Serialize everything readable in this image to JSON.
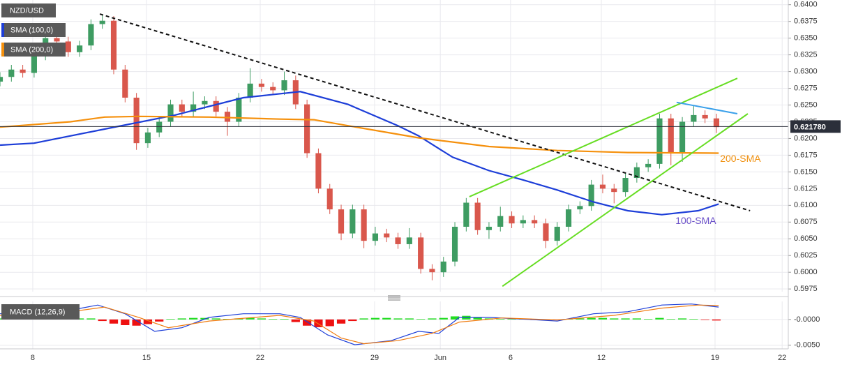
{
  "chart_data": [
    {
      "type": "candlestick",
      "title": "NZD/USD",
      "x": [
        0,
        0.5,
        1,
        1.5,
        2,
        2.5,
        3,
        3.5,
        4,
        4.5,
        5,
        5.5,
        6,
        6.5,
        7,
        7.5,
        8,
        8.5,
        9,
        9.5,
        10,
        10.5,
        11,
        11.5,
        12,
        12.5,
        13,
        13.5,
        14,
        14.5,
        15,
        15.5,
        16,
        16.5,
        17,
        17.5,
        18,
        18.5,
        19,
        19.5,
        20,
        20.5,
        21,
        21.5,
        22,
        22.5,
        23,
        23.5,
        24,
        24.5,
        25,
        25.5,
        26,
        26.5,
        27,
        27.5,
        28,
        28.5,
        29,
        29.5,
        30,
        30.5,
        31,
        31.5
      ],
      "open": [
        0.6285,
        0.6292,
        0.6303,
        0.6298,
        0.6324,
        0.635,
        0.6345,
        0.6329,
        0.6339,
        0.6371,
        0.6376,
        0.6303,
        0.6261,
        0.6193,
        0.6209,
        0.6225,
        0.6251,
        0.624,
        0.6251,
        0.6256,
        0.624,
        0.6225,
        0.6261,
        0.6282,
        0.6277,
        0.6272,
        0.6287,
        0.6251,
        0.6178,
        0.6125,
        0.6094,
        0.6058,
        0.6094,
        0.6047,
        0.6058,
        0.6052,
        0.6042,
        0.6052,
        0.6005,
        0.6,
        0.6016,
        0.6068,
        0.6104,
        0.6063,
        0.6068,
        0.6084,
        0.6073,
        0.6078,
        0.6073,
        0.6047,
        0.6068,
        0.6094,
        0.6099,
        0.6131,
        0.6125,
        0.612,
        0.6141,
        0.6157,
        0.6162,
        0.623,
        0.6178,
        0.6225,
        0.6235,
        0.623
      ],
      "high": [
        0.6299,
        0.631,
        0.631,
        0.6331,
        0.6357,
        0.6357,
        0.6352,
        0.6346,
        0.6378,
        0.6385,
        0.6383,
        0.631,
        0.6268,
        0.6216,
        0.6232,
        0.6258,
        0.6258,
        0.627,
        0.6263,
        0.6263,
        0.6247,
        0.6268,
        0.6305,
        0.6289,
        0.6284,
        0.63,
        0.6294,
        0.6258,
        0.6185,
        0.6132,
        0.6101,
        0.6101,
        0.6101,
        0.6068,
        0.6065,
        0.6059,
        0.6066,
        0.6059,
        0.6012,
        0.6023,
        0.6075,
        0.6111,
        0.6111,
        0.6075,
        0.6098,
        0.6091,
        0.6085,
        0.6085,
        0.608,
        0.6075,
        0.6101,
        0.6106,
        0.6138,
        0.6146,
        0.6132,
        0.6148,
        0.6164,
        0.6169,
        0.6237,
        0.6237,
        0.6232,
        0.625,
        0.6242,
        0.6237
      ],
      "low": [
        0.6278,
        0.6285,
        0.6291,
        0.6291,
        0.6317,
        0.6338,
        0.6322,
        0.6322,
        0.6332,
        0.6364,
        0.6296,
        0.6254,
        0.6183,
        0.6186,
        0.6202,
        0.6218,
        0.6233,
        0.6233,
        0.6244,
        0.6233,
        0.6204,
        0.6218,
        0.6254,
        0.627,
        0.6265,
        0.6265,
        0.6244,
        0.6171,
        0.6118,
        0.6087,
        0.6048,
        0.6051,
        0.6036,
        0.604,
        0.6045,
        0.6035,
        0.6035,
        0.5998,
        0.5988,
        0.5993,
        0.6009,
        0.6061,
        0.6056,
        0.605,
        0.6061,
        0.6066,
        0.6066,
        0.6066,
        0.6036,
        0.604,
        0.6061,
        0.6087,
        0.6092,
        0.6118,
        0.6103,
        0.6113,
        0.6134,
        0.615,
        0.6155,
        0.616,
        0.6165,
        0.6218,
        0.6223,
        0.6208
      ],
      "close": [
        0.6292,
        0.6303,
        0.6298,
        0.6324,
        0.635,
        0.6345,
        0.6329,
        0.6339,
        0.6371,
        0.6376,
        0.6303,
        0.6261,
        0.6193,
        0.6209,
        0.6225,
        0.6251,
        0.624,
        0.6251,
        0.6256,
        0.624,
        0.6225,
        0.6261,
        0.6282,
        0.6277,
        0.6272,
        0.6287,
        0.6251,
        0.6178,
        0.6125,
        0.6094,
        0.6058,
        0.6094,
        0.6047,
        0.6058,
        0.6052,
        0.6042,
        0.6052,
        0.6005,
        0.6,
        0.6016,
        0.6068,
        0.6104,
        0.6063,
        0.6068,
        0.6084,
        0.6073,
        0.6078,
        0.6073,
        0.6047,
        0.6068,
        0.6094,
        0.6099,
        0.6131,
        0.6125,
        0.612,
        0.6141,
        0.6157,
        0.6162,
        0.623,
        0.6178,
        0.6225,
        0.6235,
        0.623,
        0.6217
      ],
      "up_color": "#3e9c62",
      "down_color": "#d9574c",
      "xlim": [
        0,
        34.66
      ],
      "ylim": [
        0.5971,
        0.6407
      ],
      "xticks": [
        {
          "value": 1.44,
          "label": "8"
        },
        {
          "value": 6.44,
          "label": "15"
        },
        {
          "value": 11.44,
          "label": "22"
        },
        {
          "value": 16.47,
          "label": "29"
        },
        {
          "value": 19.36,
          "label": "Jun"
        },
        {
          "value": 22.45,
          "label": "6"
        },
        {
          "value": 26.44,
          "label": "12"
        },
        {
          "value": 31.44,
          "label": "19"
        },
        {
          "value": 34.39,
          "label": "22"
        }
      ],
      "yticks": [
        {
          "value": 0.64,
          "label": "0.6400"
        },
        {
          "value": 0.6375,
          "label": "0.6375"
        },
        {
          "value": 0.635,
          "label": "0.6350"
        },
        {
          "value": 0.6325,
          "label": "0.6325"
        },
        {
          "value": 0.63,
          "label": "0.6300"
        },
        {
          "value": 0.6275,
          "label": "0.6275"
        },
        {
          "value": 0.625,
          "label": "0.6250"
        },
        {
          "value": 0.6225,
          "label": "0.6225"
        },
        {
          "value": 0.62,
          "label": "0.6200"
        },
        {
          "value": 0.6175,
          "label": "0.6175"
        },
        {
          "value": 0.615,
          "label": "0.6150"
        },
        {
          "value": 0.6125,
          "label": "0.6125"
        },
        {
          "value": 0.61,
          "label": "0.6100"
        },
        {
          "value": 0.6075,
          "label": "0.6075"
        },
        {
          "value": 0.605,
          "label": "0.6050"
        },
        {
          "value": 0.6025,
          "label": "0.6025"
        },
        {
          "value": 0.6,
          "label": "0.6000"
        },
        {
          "value": 0.5975,
          "label": "0.5975"
        }
      ],
      "grid": true,
      "series": [
        {
          "name": "SMA (100,0)",
          "label": "100-SMA",
          "label_color": "#6a4fc9",
          "color": "#1d3ed8",
          "x": [
            0,
            1.5,
            4.6,
            7.7,
            10.7,
            13.2,
            15.3,
            17.5,
            18.4,
            19.9,
            21.5,
            23,
            24.5,
            26.1,
            27.6,
            29.1,
            30.7,
            31.6
          ],
          "values": [
            0.619,
            0.6193,
            0.6214,
            0.6235,
            0.6261,
            0.627,
            0.6251,
            0.6219,
            0.6204,
            0.6172,
            0.6152,
            0.6138,
            0.6123,
            0.6105,
            0.6092,
            0.6086,
            0.6092,
            0.6102
          ]
        },
        {
          "name": "SMA (200,0)",
          "label": "200-SMA",
          "label_color": "#f0900e",
          "color": "#f5900c",
          "x": [
            0,
            3.1,
            4.6,
            6.1,
            9.2,
            12.3,
            13.8,
            15.3,
            18.4,
            21.5,
            24.5,
            27.6,
            31.6
          ],
          "values": [
            0.6217,
            0.6225,
            0.6232,
            0.6233,
            0.6232,
            0.6229,
            0.6228,
            0.6219,
            0.6201,
            0.6188,
            0.6182,
            0.6179,
            0.6178
          ]
        }
      ],
      "trendlines": [
        {
          "color": "#111111",
          "dashed": true,
          "x": [
            4.39,
            32.98
          ],
          "values": [
            0.6386,
            0.6092
          ]
        },
        {
          "color": "#66dd22",
          "dashed": false,
          "x": [
            20.64,
            32.42
          ],
          "values": [
            0.6113,
            0.629
          ]
        },
        {
          "color": "#66dd22",
          "dashed": false,
          "x": [
            22.09,
            32.88
          ],
          "values": [
            0.5979,
            0.6237
          ]
        },
        {
          "color": "#3aa0ea",
          "dashed": false,
          "x": [
            29.75,
            32.42
          ],
          "values": [
            0.6254,
            0.6237
          ]
        }
      ],
      "last_price": {
        "value": 0.62178,
        "label": "0.621780"
      }
    },
    {
      "type": "macd",
      "title": "MACD (12,26,9)",
      "x": [
        0,
        0.5,
        1,
        1.5,
        2,
        2.5,
        3,
        3.5,
        4,
        4.5,
        5,
        5.5,
        6,
        6.5,
        7,
        7.5,
        8,
        8.5,
        9,
        9.5,
        10,
        10.5,
        11,
        11.5,
        12,
        12.5,
        13,
        13.5,
        14,
        14.5,
        15,
        15.5,
        16,
        16.5,
        17,
        17.5,
        18,
        18.5,
        19,
        19.5,
        20,
        20.5,
        21,
        21.5,
        22,
        22.5,
        23,
        23.5,
        24,
        24.5,
        25,
        25.5,
        26,
        26.5,
        27,
        27.5,
        28,
        28.5,
        29,
        29.5,
        30,
        30.5,
        31,
        31.5
      ],
      "histogram": {
        "up_color": "#22dd22",
        "down_color": "#ee1111",
        "values": [
          0.0002,
          0.0002,
          0.0001,
          0.0002,
          0.0002,
          0.0001,
          0.0001,
          0.0002,
          0.0002,
          -0.0003,
          -0.0008,
          -0.0011,
          -0.0012,
          -0.0009,
          -0.0004,
          0.0001,
          0.0002,
          0.0003,
          0.0003,
          0.0002,
          0.0001,
          0.0002,
          0.0003,
          0.0002,
          0.0001,
          0.0001,
          -0.0005,
          -0.0012,
          -0.0015,
          -0.0013,
          -0.0008,
          -0.0003,
          0.0002,
          0.0003,
          0.0003,
          0.0002,
          0.0002,
          0.0001,
          0.0002,
          0.0003,
          0.0006,
          0.0007,
          0.0004,
          0.0002,
          0.0001,
          0.0001,
          0.0001,
          -0.0001,
          -0.0002,
          -0.0001,
          0.0001,
          0.0002,
          0.0003,
          0.0003,
          0.0002,
          0.0002,
          0.0002,
          0.0001,
          0.0003,
          0.0001,
          0.0002,
          0.0001,
          -0.0001,
          -0.0002
        ]
      },
      "series": [
        {
          "color": "#1d3ed8",
          "x": [
            0,
            3.1,
            4.3,
            5.5,
            6.8,
            8,
            9.2,
            10.7,
            12.3,
            13.2,
            14.4,
            15.6,
            17.2,
            18.4,
            19.3,
            20.2,
            21.5,
            23.3,
            24.5,
            26.1,
            27.6,
            29.1,
            30.4,
            31.6
          ],
          "values": [
            0.0011,
            0.0018,
            0.0028,
            0.0011,
            -0.0023,
            -0.0016,
            0.0004,
            0.0011,
            0.0011,
            0.0004,
            -0.003,
            -0.0049,
            -0.0041,
            -0.0023,
            -0.0027,
            0.0004,
            0.0004,
            0,
            -0.0003,
            0.0011,
            0.0015,
            0.0028,
            0.003,
            0.0024
          ]
        },
        {
          "color": "#f07c10",
          "x": [
            0,
            3.1,
            4.6,
            6.1,
            7.4,
            9.2,
            12.3,
            13.8,
            15,
            16,
            17.5,
            19,
            20.2,
            22.1,
            24.5,
            27,
            29.1,
            30.7,
            31.6
          ],
          "values": [
            0.0008,
            0.0015,
            0.0024,
            0.0004,
            -0.0016,
            -0.0003,
            0.0008,
            -0.0003,
            -0.0036,
            -0.0047,
            -0.0041,
            -0.0027,
            -0.0005,
            0.0003,
            -0.0001,
            0.0008,
            0.0022,
            0.0028,
            0.0027
          ]
        }
      ],
      "xlim": [
        0,
        34.66
      ],
      "ylim": [
        -0.0057,
        0.0035
      ],
      "yticks": [
        {
          "value": 0,
          "label": "-0.0000"
        },
        {
          "value": -0.005,
          "label": "-0.0050"
        }
      ],
      "grid": true
    }
  ]
}
